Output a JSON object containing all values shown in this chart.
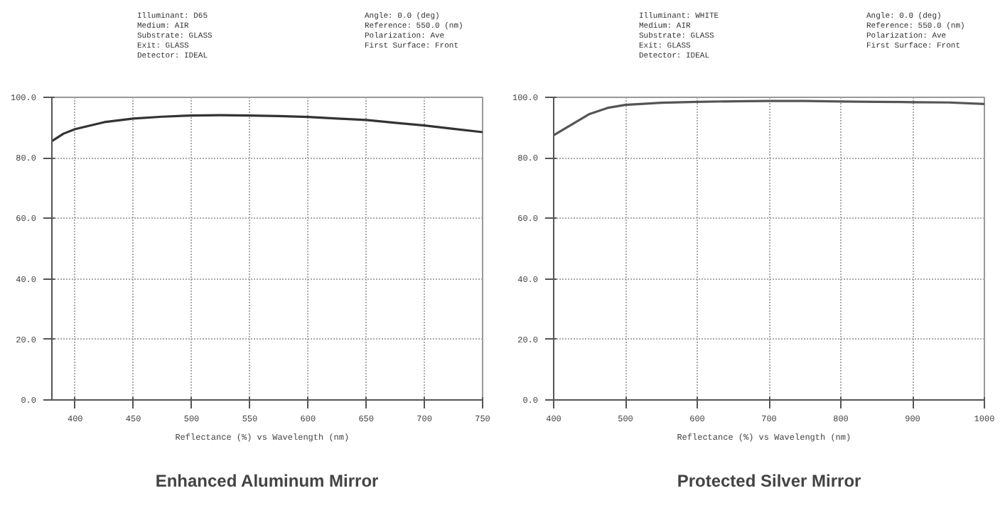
{
  "chart_data": [
    {
      "type": "line",
      "title": "Enhanced Aluminum Mirror",
      "xlabel": "Reflectance (%)  vs  Wavelength (nm)",
      "annotations": [
        "Illuminant: D65",
        "Medium:     AIR",
        "Substrate:  GLASS",
        "Exit:       GLASS",
        "Detector:   IDEAL",
        "Angle:          0.0 (deg)",
        "Reference:      550.0 (nm)",
        "Polarization:   Ave",
        "First Surface: Front"
      ],
      "x": [
        380,
        390,
        400,
        425,
        450,
        475,
        500,
        525,
        550,
        575,
        600,
        625,
        650,
        675,
        700,
        725,
        750
      ],
      "series": [
        {
          "color": "#333333",
          "values": [
            85.5,
            88,
            89.5,
            91.8,
            93,
            93.6,
            94,
            94.1,
            94,
            93.8,
            93.5,
            93,
            92.5,
            91.6,
            90.7,
            89.6,
            88.5
          ]
        }
      ],
      "xlim": [
        380,
        750
      ],
      "xticks": [
        400,
        450,
        500,
        550,
        600,
        650,
        700,
        750
      ],
      "ylim": [
        0,
        100
      ],
      "yticks": [
        {
          "value": 0,
          "label": "0.0"
        },
        {
          "value": 20,
          "label": "20.0"
        },
        {
          "value": 40,
          "label": "40.0"
        },
        {
          "value": 60,
          "label": "60.0"
        },
        {
          "value": 80,
          "label": "80.0"
        },
        {
          "value": 100,
          "label": "100.0"
        }
      ],
      "grid": true,
      "line_style": "solid"
    },
    {
      "type": "line",
      "title": "Protected Silver Mirror",
      "xlabel": "Reflectance (%)  vs  Wavelength (nm)",
      "annotations": [
        "Illuminant: WHITE",
        "Medium:     AIR",
        "Substrate:  GLASS",
        "Exit:       GLASS",
        "Detector:   IDEAL",
        "Angle:          0.0 (deg)",
        "Reference:      550.0 (nm)",
        "Polarization:   Ave",
        "First Surface: Front"
      ],
      "x": [
        400,
        425,
        450,
        475,
        500,
        550,
        600,
        650,
        700,
        750,
        800,
        850,
        900,
        950,
        1000
      ],
      "series": [
        {
          "color": "#555555",
          "values": [
            87.5,
            91,
            94.5,
            96.5,
            97.5,
            98.2,
            98.5,
            98.7,
            98.8,
            98.8,
            98.6,
            98.5,
            98.4,
            98.3,
            97.8
          ]
        }
      ],
      "xlim": [
        400,
        1000
      ],
      "xticks": [
        400,
        500,
        600,
        700,
        800,
        900,
        1000
      ],
      "ylim": [
        0,
        100
      ],
      "yticks": [
        {
          "value": 0,
          "label": "0.0"
        },
        {
          "value": 20,
          "label": "20.0"
        },
        {
          "value": 40,
          "label": "40.0"
        },
        {
          "value": 60,
          "label": "60.0"
        },
        {
          "value": 80,
          "label": "80.0"
        },
        {
          "value": 100,
          "label": "100.0"
        }
      ],
      "grid": true,
      "line_style": "solid"
    }
  ]
}
